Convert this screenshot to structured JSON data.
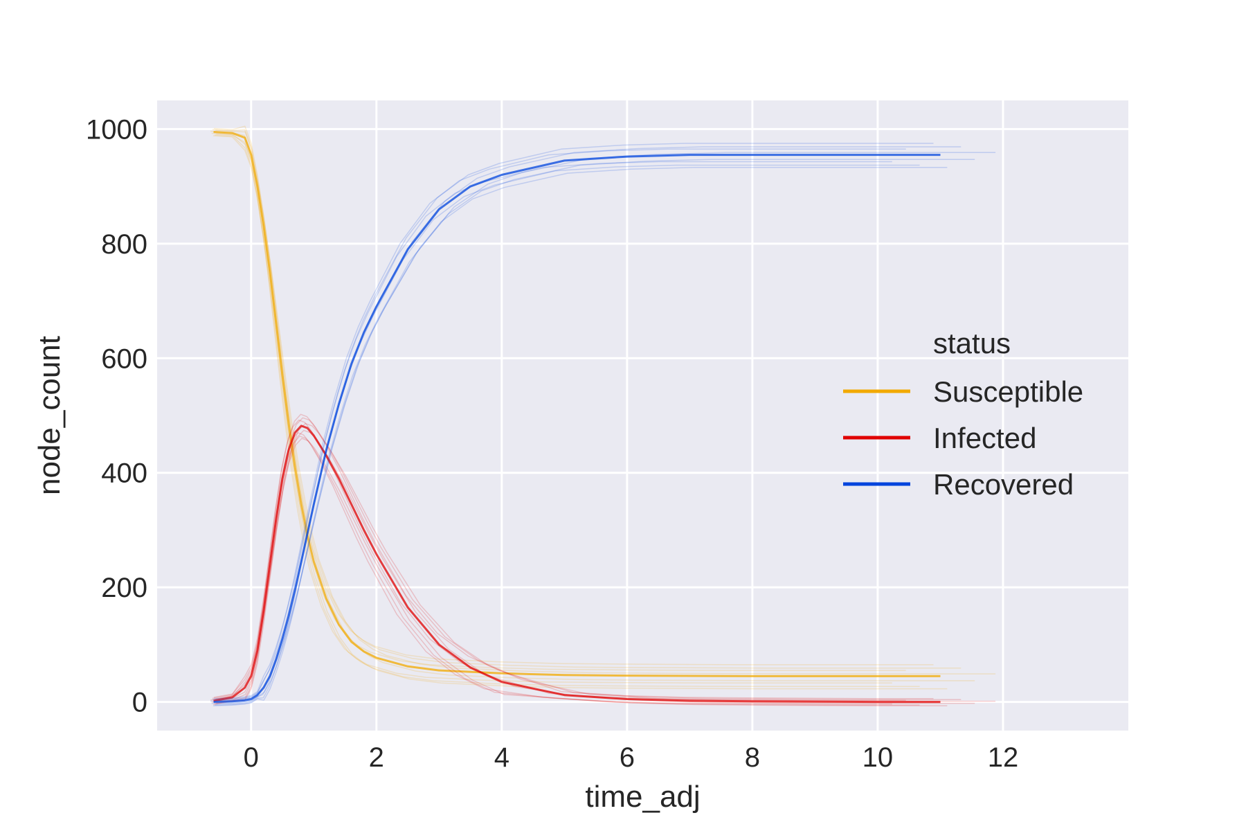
{
  "chart_data": {
    "type": "line",
    "title": "",
    "xlabel": "time_adj",
    "ylabel": "node_count",
    "xlim": [
      -1.5,
      14.0
    ],
    "ylim": [
      -50,
      1050
    ],
    "x_ticks": [
      0,
      2,
      4,
      6,
      8,
      10,
      12
    ],
    "y_ticks": [
      0,
      200,
      400,
      600,
      800,
      1000
    ],
    "x_tick_labels": [
      "0",
      "2",
      "4",
      "6",
      "8",
      "10",
      "12"
    ],
    "y_tick_labels": [
      "0",
      "200",
      "400",
      "600",
      "800",
      "1000"
    ],
    "grid": true,
    "legend": {
      "title": "status",
      "placement": "center-right",
      "entries": [
        "Susceptible",
        "Infected",
        "Recovered"
      ]
    },
    "series": [
      {
        "name": "Susceptible",
        "color": "#f2a900",
        "x": [
          -0.6,
          -0.3,
          -0.1,
          0.0,
          0.1,
          0.2,
          0.3,
          0.4,
          0.5,
          0.6,
          0.7,
          0.8,
          0.9,
          1.0,
          1.2,
          1.4,
          1.6,
          1.8,
          2.0,
          2.5,
          3.0,
          4.0,
          5.0,
          6.0,
          8.0,
          10.0,
          11.0
        ],
        "y": [
          995,
          993,
          985,
          955,
          900,
          830,
          750,
          660,
          570,
          485,
          410,
          345,
          290,
          245,
          180,
          135,
          105,
          88,
          77,
          62,
          55,
          50,
          47,
          46,
          45,
          45,
          45
        ]
      },
      {
        "name": "Infected",
        "color": "#e00000",
        "x": [
          -0.6,
          -0.3,
          -0.1,
          0.0,
          0.1,
          0.2,
          0.3,
          0.4,
          0.5,
          0.6,
          0.7,
          0.8,
          0.9,
          1.0,
          1.2,
          1.4,
          1.6,
          1.8,
          2.0,
          2.5,
          3.0,
          3.5,
          4.0,
          5.0,
          6.0,
          7.0,
          8.0,
          10.0,
          11.0
        ],
        "y": [
          2,
          8,
          25,
          45,
          90,
          160,
          240,
          320,
          390,
          440,
          470,
          482,
          478,
          465,
          430,
          390,
          345,
          300,
          258,
          165,
          100,
          60,
          35,
          12,
          5,
          2,
          1,
          0,
          0
        ]
      },
      {
        "name": "Recovered",
        "color": "#0044dd",
        "x": [
          -0.6,
          -0.3,
          -0.1,
          0.0,
          0.1,
          0.2,
          0.3,
          0.4,
          0.5,
          0.6,
          0.7,
          0.8,
          0.9,
          1.0,
          1.2,
          1.4,
          1.6,
          1.8,
          2.0,
          2.5,
          3.0,
          3.5,
          4.0,
          5.0,
          6.0,
          7.0,
          8.0,
          10.0,
          11.0
        ],
        "y": [
          0,
          1,
          3,
          5,
          12,
          25,
          45,
          75,
          110,
          150,
          195,
          245,
          295,
          345,
          440,
          520,
          590,
          645,
          690,
          790,
          860,
          900,
          920,
          945,
          952,
          955,
          955,
          955,
          955
        ]
      }
    ]
  }
}
